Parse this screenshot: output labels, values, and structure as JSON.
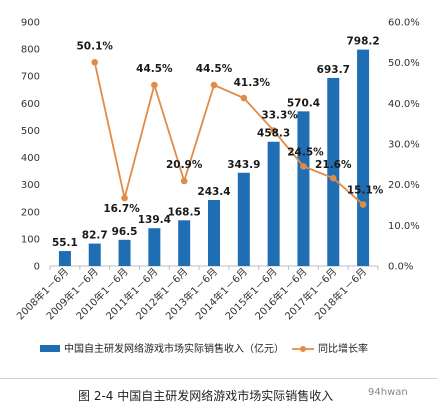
{
  "chart_data": {
    "type": "bar",
    "categories": [
      "2008年1－6月",
      "2009年1－6月",
      "2010年1－6月",
      "2011年1－6月",
      "2012年1－6月",
      "2013年1－6月",
      "2014年1－6月",
      "2015年1－6月",
      "2016年1－6月",
      "2017年1－6月",
      "2018年1－6月"
    ],
    "series": [
      {
        "name": "中国自主研发网络游戏市场实际销售收入（亿元）",
        "type": "bar",
        "axis": "left",
        "color": "#1f6db3",
        "values": [
          55.1,
          82.7,
          96.5,
          139.4,
          168.5,
          243.4,
          343.9,
          458.3,
          570.4,
          693.7,
          798.2
        ],
        "labels": [
          "55.1",
          "82.7",
          "96.5",
          "139.4",
          "168.5",
          "243.4",
          "343.9",
          "458.3",
          "570.4",
          "693.7",
          "798.2"
        ]
      },
      {
        "name": "同比增长率",
        "type": "line",
        "axis": "right",
        "color": "#e08b47",
        "values": [
          null,
          50.1,
          16.7,
          44.5,
          20.9,
          44.5,
          41.3,
          33.3,
          24.5,
          21.6,
          15.1
        ],
        "labels": [
          null,
          "50.1%",
          "16.7%",
          "44.5%",
          "20.9%",
          "44.5%",
          "41.3%",
          "33.3%",
          "24.5%",
          "21.6%",
          "15.1%"
        ]
      }
    ],
    "ylim_left": [
      0,
      900
    ],
    "yticks_left": [
      "0",
      "100",
      "200",
      "300",
      "400",
      "500",
      "600",
      "700",
      "800",
      "900"
    ],
    "ylim_right": [
      0,
      60
    ],
    "yticks_right": [
      "0.0%",
      "10.0%",
      "20.0%",
      "30.0%",
      "40.0%",
      "50.0%",
      "60.0%"
    ],
    "grid": false,
    "legend_position": "bottom"
  },
  "caption": "图 2-4  中国自主研发网络游戏市场实际销售收入",
  "watermark": "94hwan"
}
